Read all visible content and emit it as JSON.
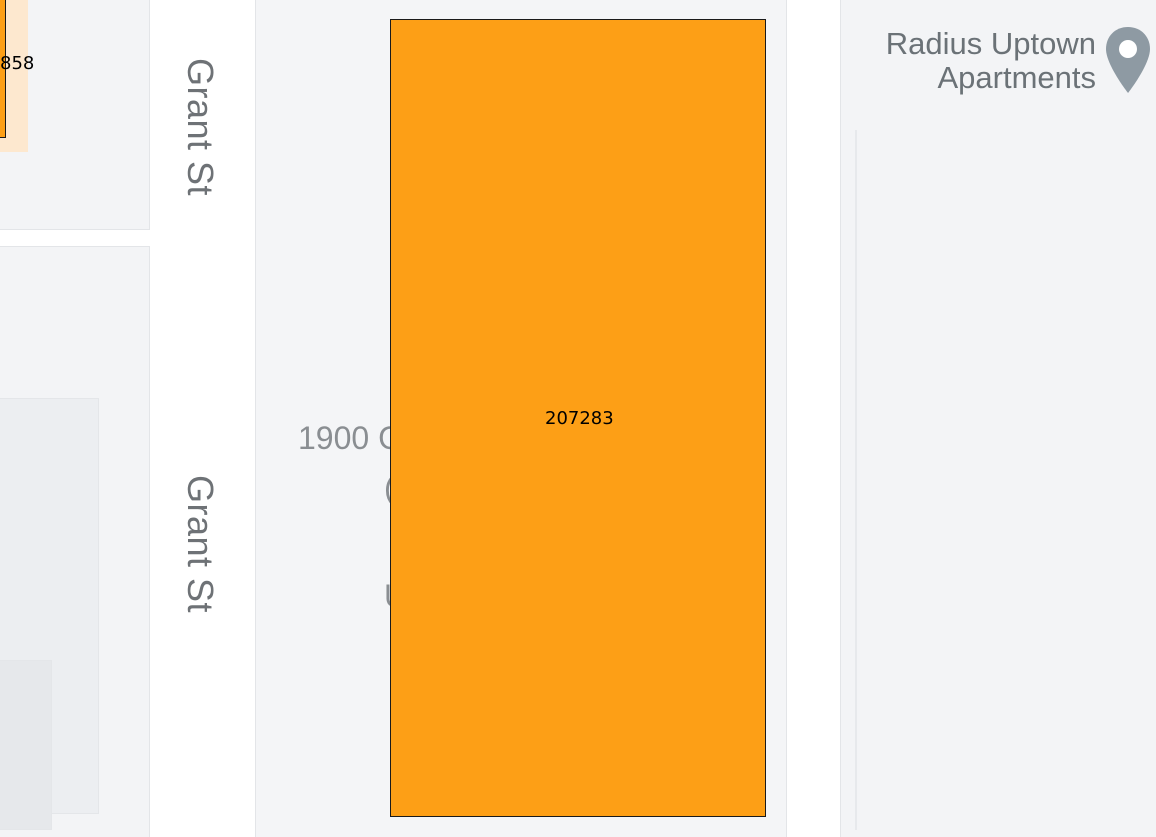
{
  "map": {
    "streets": [
      {
        "id": "grant-st-upper",
        "name": "Grant St"
      },
      {
        "id": "grant-st-lower",
        "name": "Grant St"
      }
    ],
    "address_label": "1900 G",
    "address_fragments": [
      "(",
      "U"
    ],
    "poi": {
      "name_line1": "Radius Uptown",
      "name_line2": "Apartments",
      "icon": "map-pin-icon",
      "pin_color": "#8e9aa3"
    },
    "parcels": [
      {
        "id": "207283",
        "label": "207283",
        "fill": "#fd9f16",
        "border": "#1a1a1a"
      },
      {
        "id": "partial",
        "label": "858",
        "fill": "#fd9f16",
        "border": "#1a1a1a"
      }
    ],
    "colors": {
      "block_fill": "#f3f4f6",
      "road": "#ffffff",
      "text_muted": "#6e7276"
    }
  }
}
